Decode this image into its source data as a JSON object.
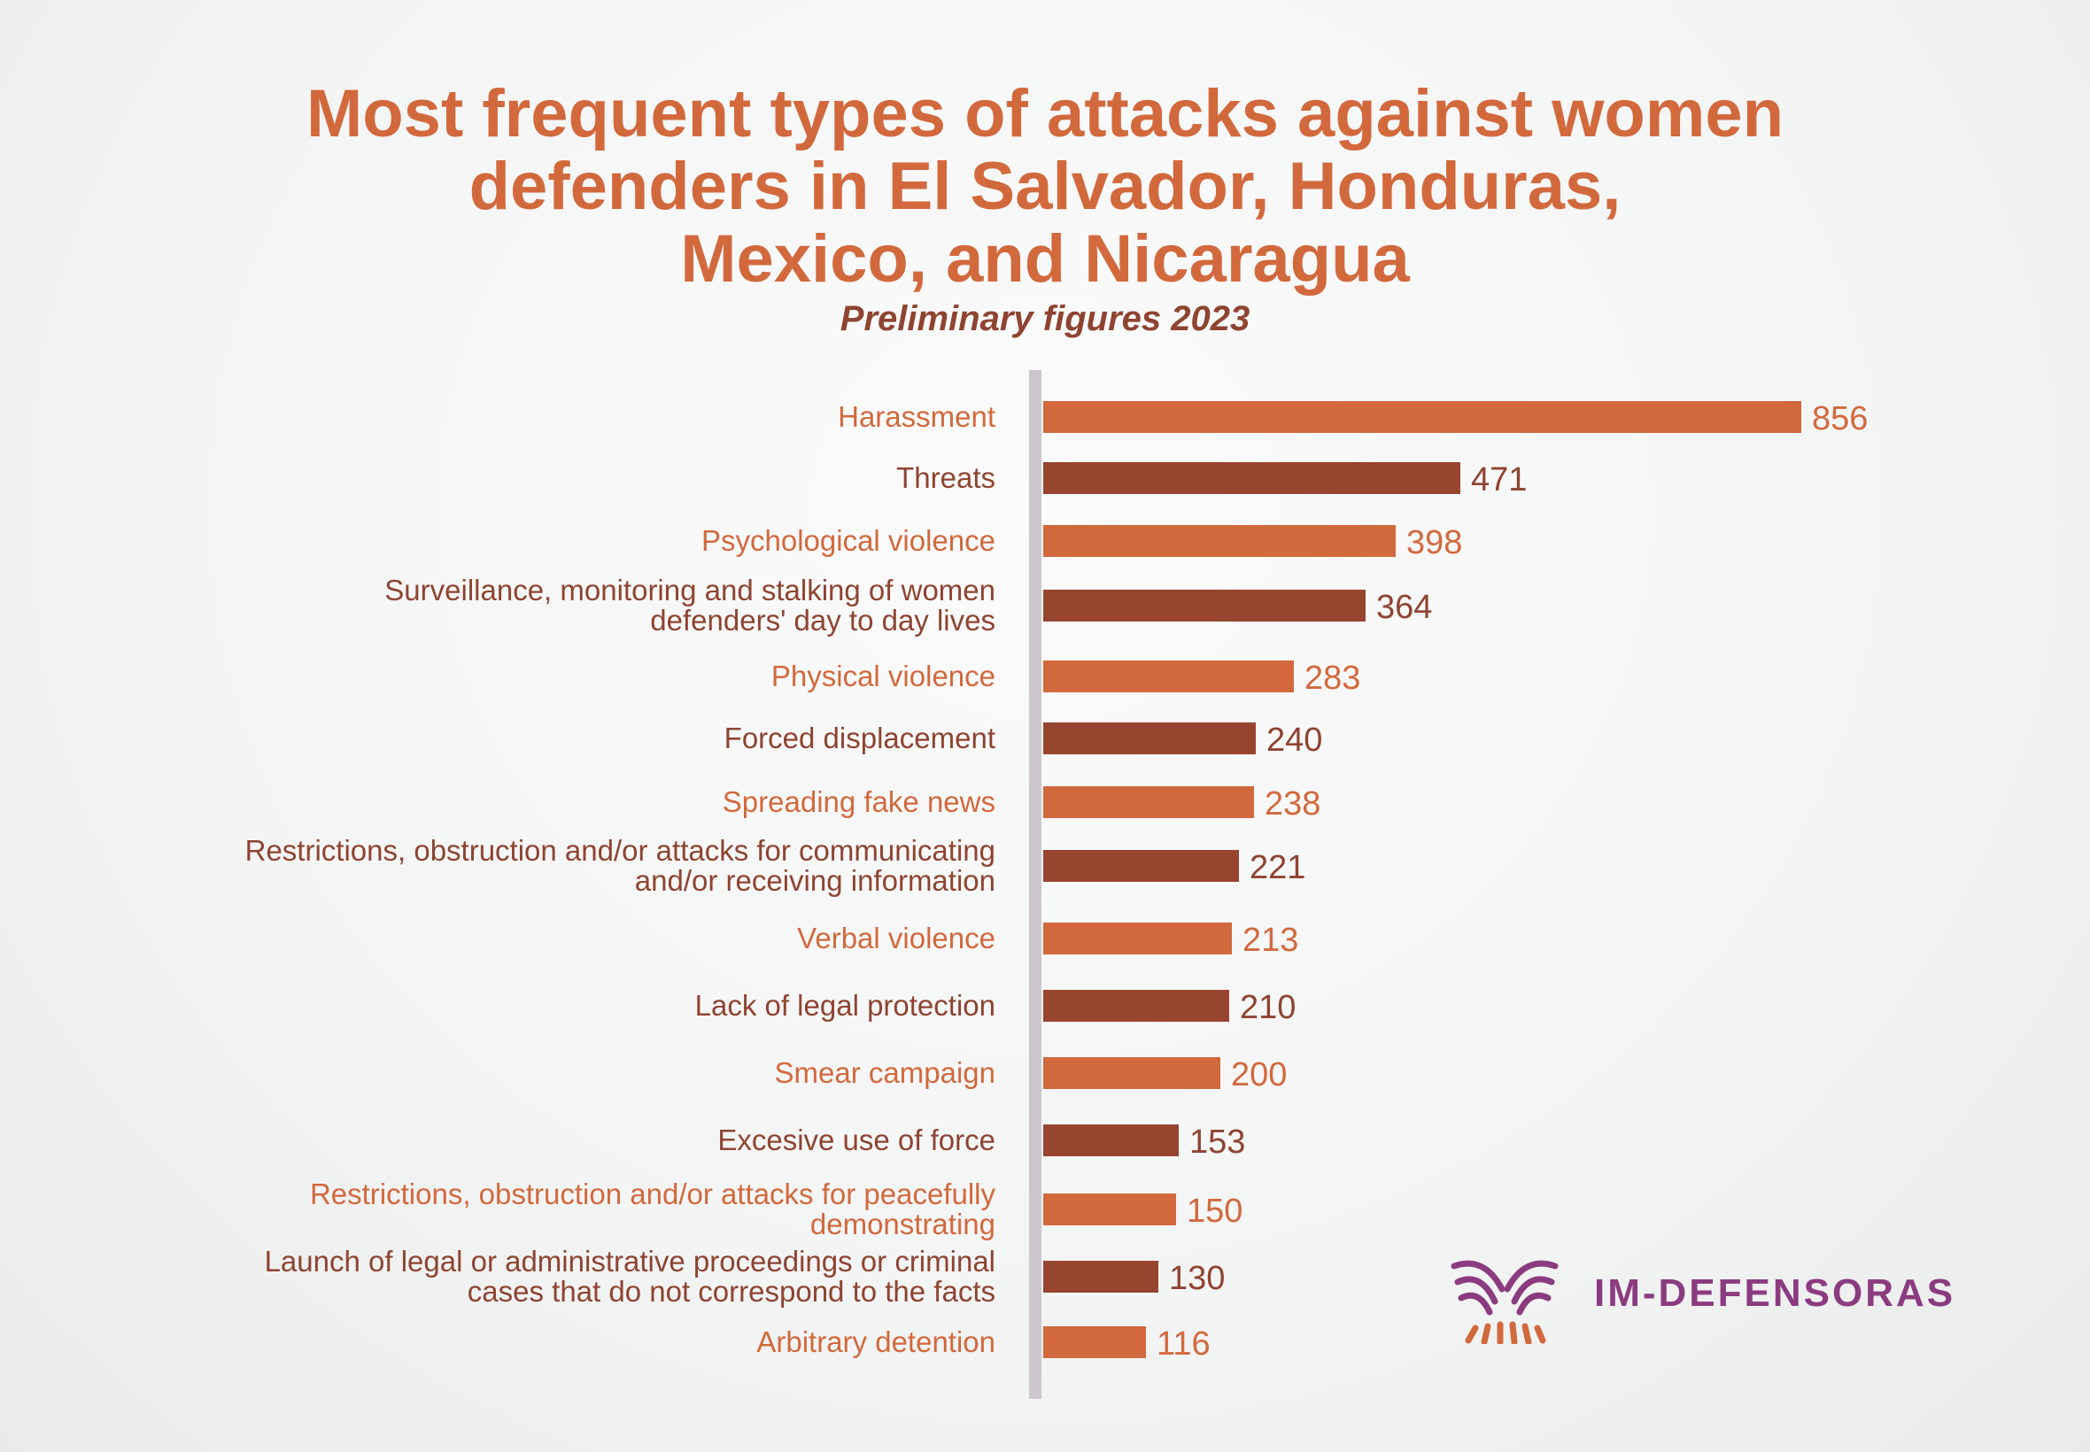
{
  "chart_data": {
    "type": "bar",
    "orientation": "horizontal",
    "title_lines": [
      "Most frequent types of attacks against women",
      "defenders in El Salvador, Honduras,",
      "Mexico, and Nicaragua"
    ],
    "subtitle": "Preliminary figures 2023",
    "categories": [
      [
        "Harassment"
      ],
      [
        "Threats"
      ],
      [
        "Psychological violence"
      ],
      [
        "Surveillance, monitoring and stalking of women",
        "defenders' day to day lives"
      ],
      [
        "Physical violence"
      ],
      [
        "Forced displacement"
      ],
      [
        "Spreading fake news"
      ],
      [
        "Restrictions, obstruction and/or attacks for communicating",
        "and/or receiving information"
      ],
      [
        "Verbal violence"
      ],
      [
        "Lack of legal protection"
      ],
      [
        "Smear campaign"
      ],
      [
        "Excesive use of force"
      ],
      [
        "Restrictions, obstruction and/or attacks for peacefully",
        "demonstrating"
      ],
      [
        "Launch of legal or administrative proceedings or criminal",
        "cases that do not correspond to the facts"
      ],
      [
        "Arbitrary detention"
      ]
    ],
    "values": [
      856,
      471,
      398,
      364,
      283,
      240,
      238,
      221,
      213,
      210,
      200,
      153,
      150,
      130,
      116
    ],
    "colors": [
      "#d2693d",
      "#984530"
    ],
    "xlim": [
      0,
      856
    ]
  },
  "brand": {
    "name": "IM-DEFENSORAS",
    "colors": {
      "purple": "#8b3b7f",
      "orange": "#d2693d"
    }
  }
}
